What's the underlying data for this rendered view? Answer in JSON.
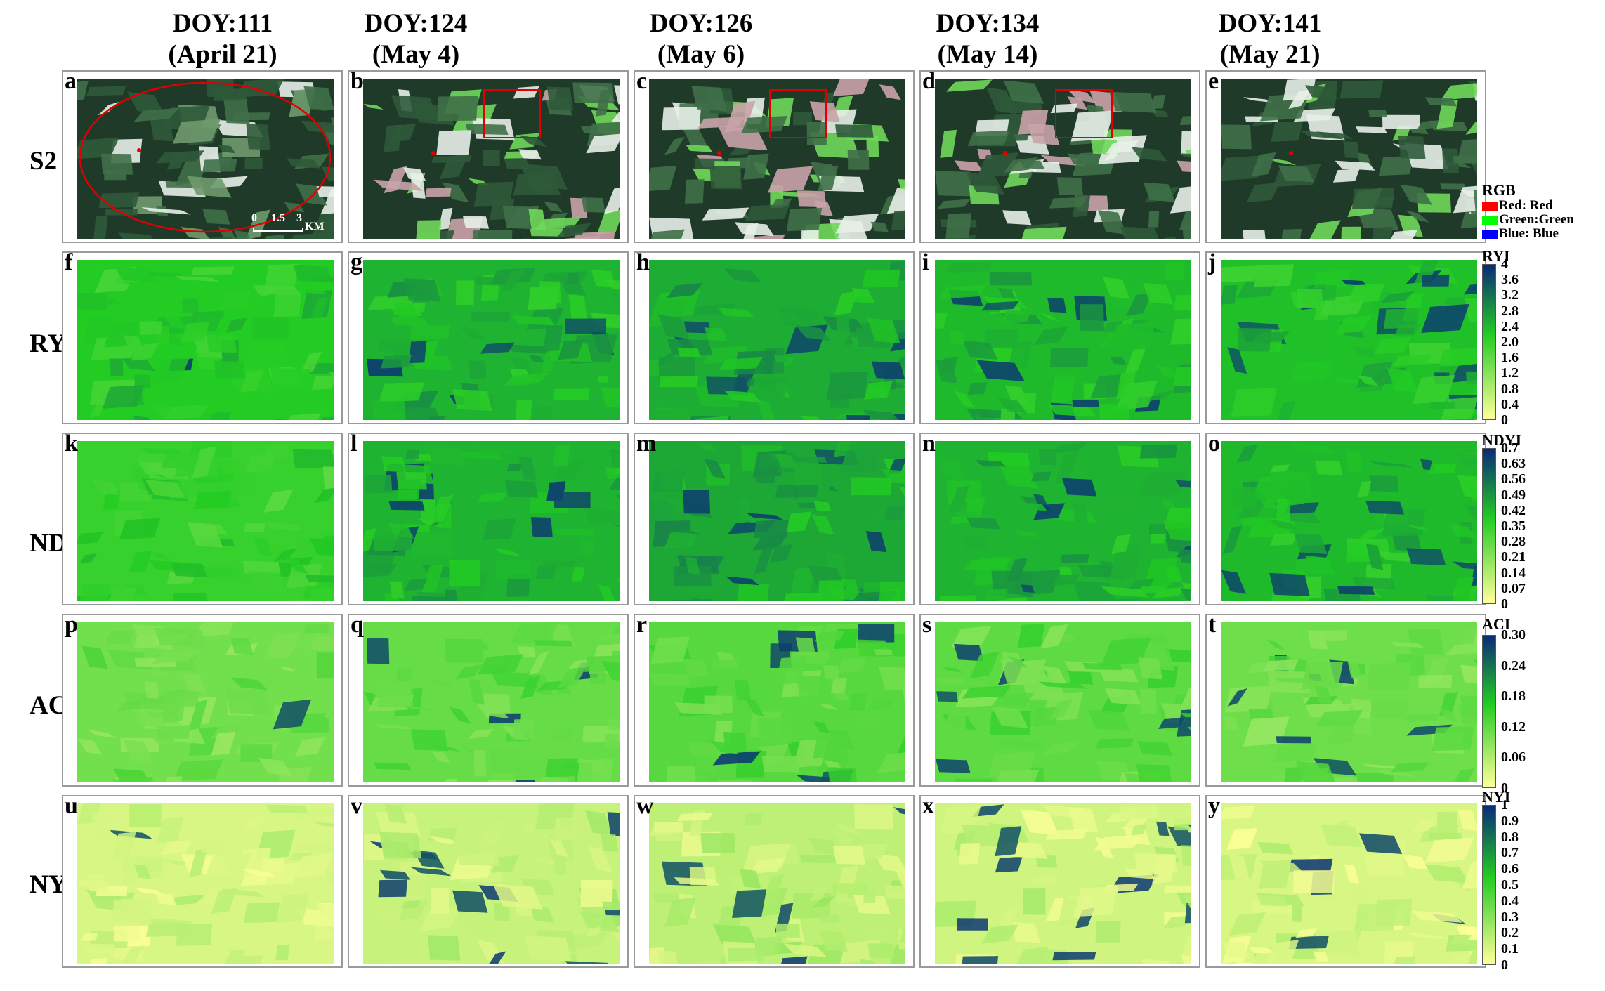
{
  "columns": [
    {
      "doy": "DOY:111",
      "date": "(April 21)"
    },
    {
      "doy": "DOY:124",
      "date": "(May 4)"
    },
    {
      "doy": "DOY:126",
      "date": "(May 6)"
    },
    {
      "doy": "DOY:134",
      "date": "(May 14)"
    },
    {
      "doy": "DOY:141",
      "date": "(May 21)"
    }
  ],
  "rows": [
    {
      "label": "S2",
      "letters": [
        "a",
        "b",
        "c",
        "d",
        "e"
      ]
    },
    {
      "label": "RYI",
      "letters": [
        "f",
        "g",
        "h",
        "i",
        "j"
      ]
    },
    {
      "label": "NDYI",
      "letters": [
        "k",
        "l",
        "m",
        "n",
        "o"
      ]
    },
    {
      "label": "ACI",
      "letters": [
        "p",
        "q",
        "r",
        "s",
        "t"
      ]
    },
    {
      "label": "NYI",
      "letters": [
        "u",
        "v",
        "w",
        "x",
        "y"
      ]
    }
  ],
  "scalebar": {
    "ticks": [
      "0",
      "1.5",
      "3"
    ],
    "unit": "KM"
  },
  "legends": {
    "rgb": {
      "title": "RGB",
      "items": [
        {
          "label": "Red: Red",
          "color": "#ff0000"
        },
        {
          "label": "Green:Green",
          "color": "#00ff00"
        },
        {
          "label": "Blue: Blue",
          "color": "#0000ff"
        }
      ]
    },
    "ryi": {
      "title": "RYI",
      "ticks": [
        "4",
        "3.6",
        "3.2",
        "2.8",
        "2.4",
        "2.0",
        "1.6",
        "1.2",
        "0.8",
        "0.4",
        "0"
      ]
    },
    "ndyi": {
      "title": "NDYI",
      "ticks": [
        "0.7",
        "0.63",
        "0.56",
        "0.49",
        "0.42",
        "0.35",
        "0.28",
        "0.21",
        "0.14",
        "0.07",
        "0"
      ]
    },
    "aci": {
      "title": "ACI",
      "ticks": [
        "0.30",
        "0.24",
        "0.18",
        "0.12",
        "0.06",
        "0"
      ]
    },
    "nyi": {
      "title": "NYI",
      "ticks": [
        "1",
        "0.9",
        "0.8",
        "0.7",
        "0.6",
        "0.5",
        "0.4",
        "0.3",
        "0.2",
        "0.1",
        "0"
      ]
    }
  },
  "colors": {
    "ramp_low": "#ffff99",
    "ramp_mid": "#22cc22",
    "ramp_high": "#0a2a7a",
    "s2_background": "#1f3a28",
    "marker": "#e00000"
  }
}
